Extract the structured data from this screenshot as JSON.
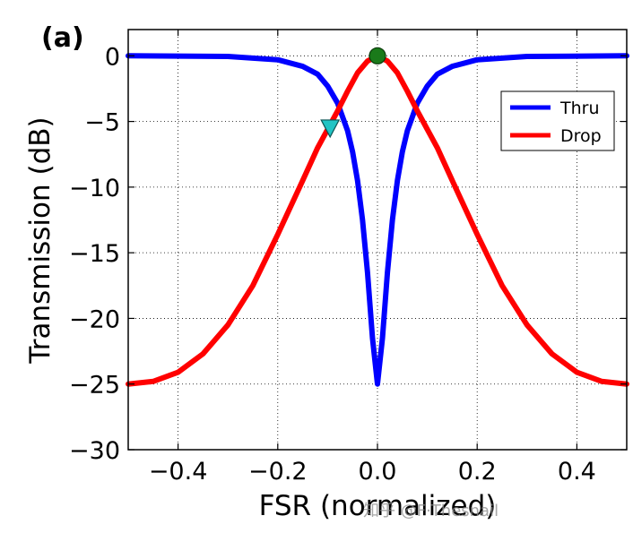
{
  "chart_data": {
    "type": "line",
    "panel_label": "(a)",
    "title": "",
    "xlabel": "FSR (normalized)",
    "ylabel": "Transmission (dB)",
    "xlim": [
      -0.5,
      0.5
    ],
    "ylim": [
      -30,
      2
    ],
    "xticks": [
      -0.4,
      -0.2,
      0.0,
      0.2,
      0.4
    ],
    "xtick_labels": [
      "−0.4",
      "−0.2",
      "0.0",
      "0.2",
      "0.4"
    ],
    "yticks": [
      0,
      -5,
      -10,
      -15,
      -20,
      -25,
      -30
    ],
    "ytick_labels": [
      "0",
      "−5",
      "−10",
      "−15",
      "−20",
      "−25",
      "−30"
    ],
    "grid": true,
    "legend_position": "upper-right",
    "series": [
      {
        "name": "Thru",
        "color": "#0000ff",
        "x": [
          -0.5,
          -0.3,
          -0.2,
          -0.15,
          -0.12,
          -0.1,
          -0.08,
          -0.06,
          -0.05,
          -0.04,
          -0.03,
          -0.02,
          -0.01,
          0.0,
          0.01,
          0.02,
          0.03,
          0.04,
          0.05,
          0.06,
          0.08,
          0.1,
          0.12,
          0.15,
          0.2,
          0.3,
          0.5
        ],
        "y": [
          0.0,
          -0.05,
          -0.3,
          -0.8,
          -1.4,
          -2.3,
          -3.6,
          -5.7,
          -7.3,
          -9.5,
          -12.5,
          -16.5,
          -21.5,
          -25.0,
          -21.5,
          -16.5,
          -12.5,
          -9.5,
          -7.3,
          -5.7,
          -3.6,
          -2.3,
          -1.4,
          -0.8,
          -0.3,
          -0.05,
          0.0
        ]
      },
      {
        "name": "Drop",
        "color": "#ff0000",
        "x": [
          -0.5,
          -0.45,
          -0.4,
          -0.35,
          -0.3,
          -0.25,
          -0.2,
          -0.15,
          -0.12,
          -0.1,
          -0.08,
          -0.06,
          -0.04,
          -0.02,
          0.0,
          0.02,
          0.04,
          0.06,
          0.08,
          0.1,
          0.12,
          0.15,
          0.2,
          0.25,
          0.3,
          0.35,
          0.4,
          0.45,
          0.5
        ],
        "y": [
          -25.0,
          -24.8,
          -24.1,
          -22.7,
          -20.5,
          -17.5,
          -13.6,
          -9.5,
          -7.0,
          -5.6,
          -4.2,
          -2.7,
          -1.3,
          -0.4,
          0.0,
          -0.4,
          -1.3,
          -2.7,
          -4.2,
          -5.6,
          -7.0,
          -9.5,
          -13.6,
          -17.5,
          -20.5,
          -22.7,
          -24.1,
          -24.8,
          -25.0
        ]
      }
    ],
    "markers": [
      {
        "name": "peak-marker",
        "shape": "circle",
        "color": "#1a7a1a",
        "x": 0.0,
        "y": 0.0
      },
      {
        "name": "triangle-marker",
        "shape": "triangle-down",
        "color": "#21c4c4",
        "x": -0.095,
        "y": -5.5
      }
    ]
  },
  "watermark": "知乎 @F·Thesnail"
}
